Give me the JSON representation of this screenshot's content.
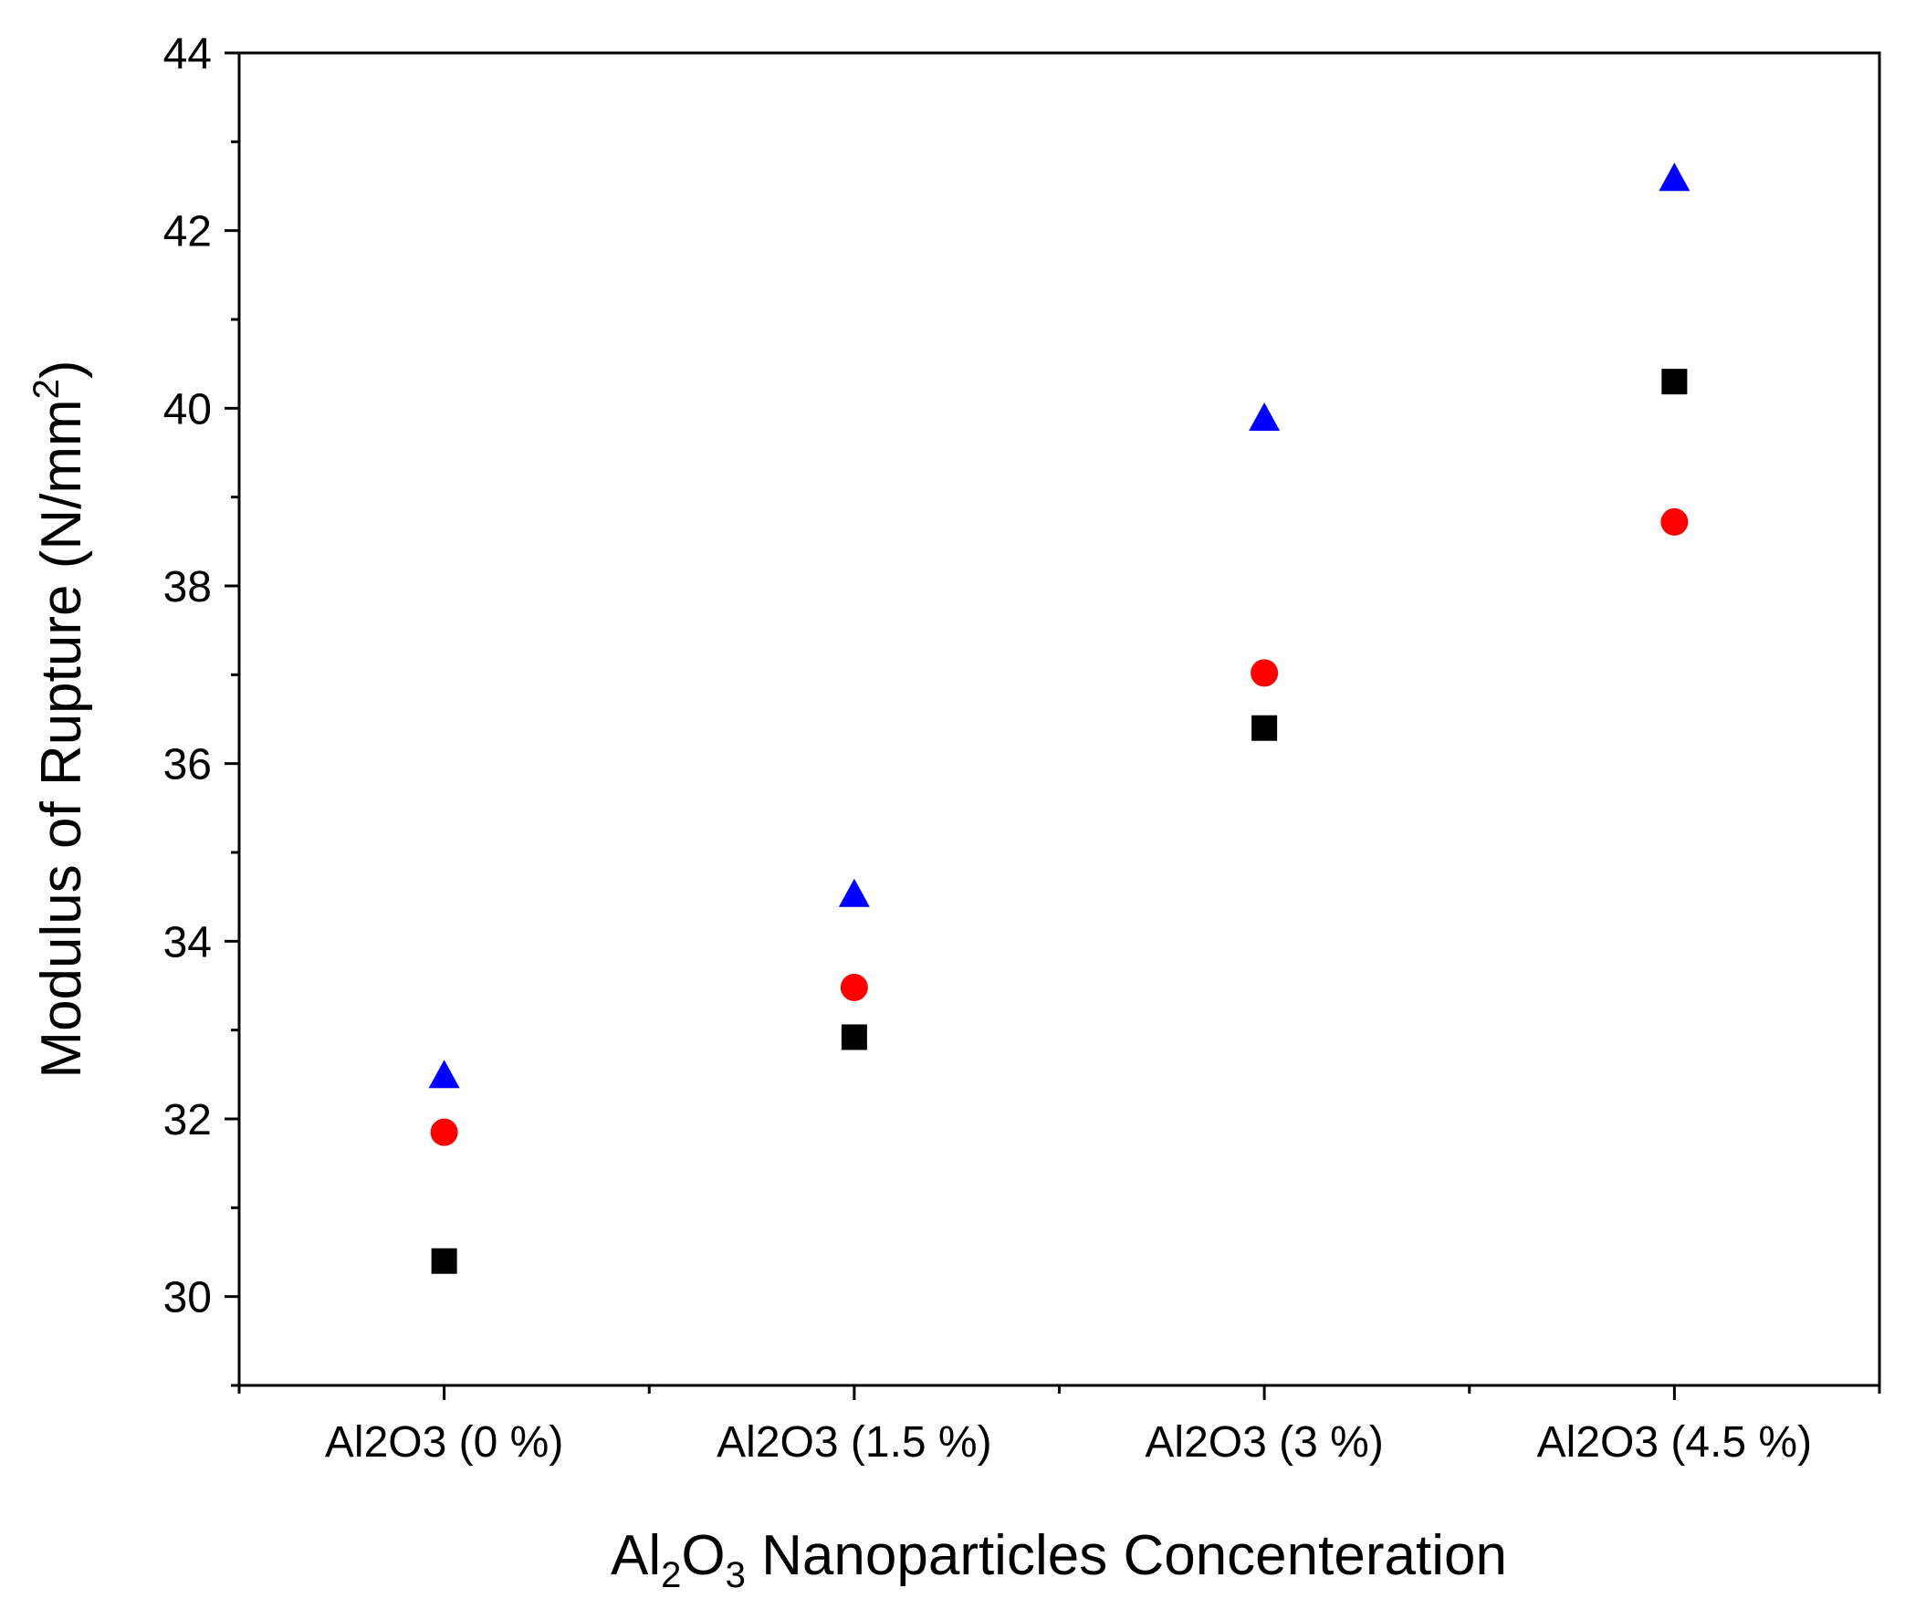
{
  "chart_data": {
    "type": "scatter",
    "title": "",
    "xlabel": {
      "main": "Al",
      "sub1": "2",
      "mid": "O",
      "sub2": "3",
      "rest": " Nanoparticles Concenteration"
    },
    "ylabel": {
      "main": "Modulus of Rupture (N/mm",
      "sup": "2",
      "end": ")"
    },
    "categories": [
      "Al2O3 (0 %)",
      "Al2O3 (1.5 %)",
      "Al2O3 (3 %)",
      "Al2O3 (4.5 %)"
    ],
    "ylim": [
      29,
      44
    ],
    "yticks": [
      30,
      32,
      34,
      36,
      38,
      40,
      42,
      44
    ],
    "y_minor_step": 1,
    "grid": false,
    "legend": "none",
    "series": [
      {
        "name": "series-square",
        "marker": "square",
        "color": "#000000",
        "values": [
          30.4,
          32.92,
          36.4,
          40.3
        ]
      },
      {
        "name": "series-circle",
        "marker": "circle",
        "color": "#ff0000",
        "values": [
          31.85,
          33.48,
          37.02,
          38.72
        ]
      },
      {
        "name": "series-triangle",
        "marker": "triangle",
        "color": "#0000ff",
        "values": [
          32.48,
          34.52,
          39.88,
          42.58
        ]
      }
    ]
  }
}
